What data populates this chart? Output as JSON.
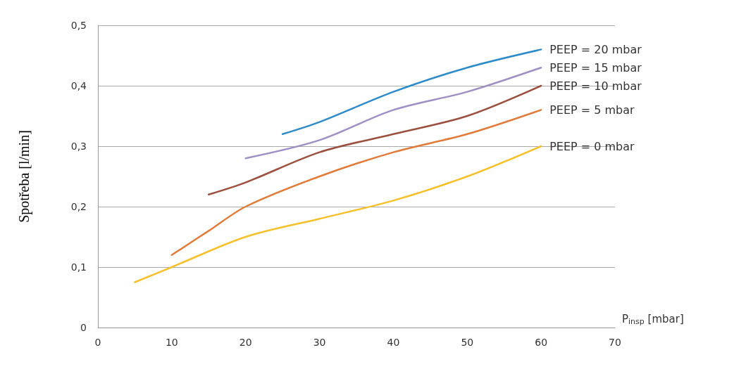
{
  "chart_data": {
    "type": "line",
    "xlabel": "P$_{insp}$ [mbar]",
    "ylabel": "Spotřeba [l/min]",
    "xlim": [
      0,
      70
    ],
    "xticks": [
      0,
      10,
      20,
      30,
      40,
      50,
      60,
      70
    ],
    "ylim": [
      0,
      0.5
    ],
    "yticks": [
      0,
      {
        "value": 0.1,
        "label": "0,1"
      },
      {
        "value": 0.2,
        "label": "0,2"
      },
      {
        "value": 0.3,
        "label": "0,3"
      },
      {
        "value": 0.4,
        "label": "0,4"
      },
      {
        "value": 0.5,
        "label": "0,5"
      }
    ],
    "grid": "y",
    "legend": false,
    "marker": "none",
    "line_style": "solid",
    "series": [
      {
        "name": "PEEP = 20 mbar",
        "color": "#2e8bc9",
        "x": [
          25,
          30,
          40,
          50,
          60
        ],
        "values": [
          0.32,
          0.34,
          0.39,
          0.43,
          0.46
        ]
      },
      {
        "name": "PEEP = 15 mbar",
        "color": "#9e8fc4",
        "x": [
          20,
          30,
          40,
          50,
          60
        ],
        "values": [
          0.28,
          0.31,
          0.36,
          0.39,
          0.43
        ]
      },
      {
        "name": "PEEP = 10 mbar",
        "color": "#9b4f3f",
        "x": [
          15,
          20,
          30,
          40,
          50,
          60
        ],
        "values": [
          0.22,
          0.24,
          0.29,
          0.32,
          0.35,
          0.4
        ]
      },
      {
        "name": "PEEP = 5 mbar",
        "color": "#e07b39",
        "x": [
          10,
          15,
          20,
          30,
          40,
          50,
          60
        ],
        "values": [
          0.12,
          0.16,
          0.2,
          0.25,
          0.29,
          0.32,
          0.36
        ]
      },
      {
        "name": "PEEP = 0 mbar",
        "color": "#f5c02a",
        "x": [
          5,
          10,
          20,
          30,
          40,
          50,
          60
        ],
        "values": [
          0.075,
          0.1,
          0.15,
          0.18,
          0.21,
          0.25,
          0.3
        ]
      }
    ]
  }
}
